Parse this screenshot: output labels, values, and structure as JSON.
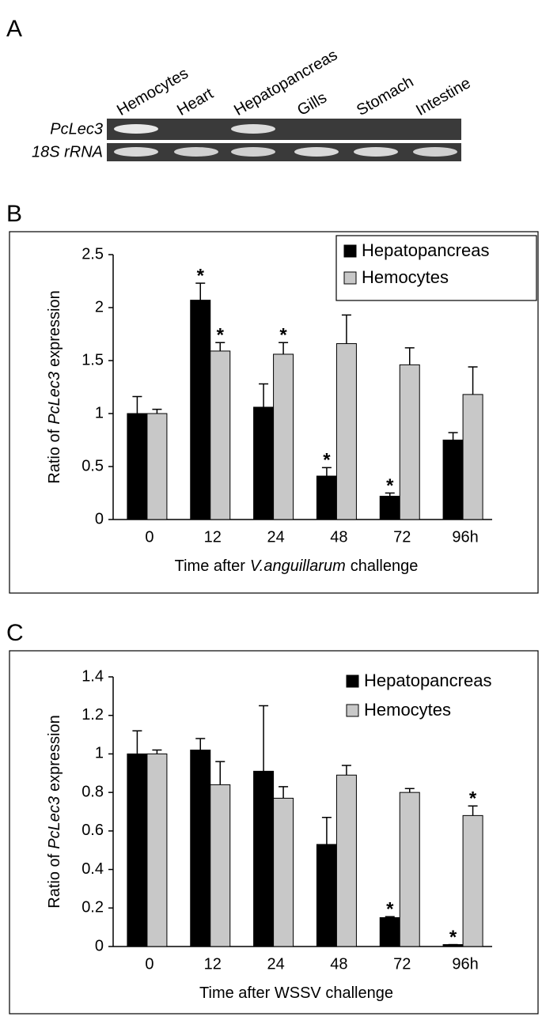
{
  "gel": {
    "panel_label": "A",
    "lanes": [
      "Hemocytes",
      "Heart",
      "Hepatopancreas",
      "Gills",
      "Stomach",
      "Intestine"
    ],
    "rows": [
      "PcLec3",
      "18S rRNA"
    ]
  },
  "chart_data": [
    {
      "panel_label": "B",
      "type": "bar",
      "y_label": [
        "Ratio of",
        "PcLec3",
        "expression"
      ],
      "x_label": [
        "Time after",
        "V.anguillarum",
        "challenge"
      ],
      "categories": [
        "0",
        "12",
        "24",
        "48",
        "72",
        "96h"
      ],
      "ylim": [
        0,
        2.5
      ],
      "yticks": [
        0,
        0.5,
        1,
        1.5,
        2,
        2.5
      ],
      "legend_frame": true,
      "series": [
        {
          "name": "Hepatopancreas",
          "color": "#000000",
          "values": [
            1.0,
            2.07,
            1.06,
            0.41,
            0.22,
            0.75
          ],
          "errors": [
            0.16,
            0.16,
            0.22,
            0.08,
            0.03,
            0.07
          ],
          "significance": [
            null,
            "*",
            null,
            "*",
            "*",
            null
          ]
        },
        {
          "name": "Hemocytes",
          "color": "#c8c8c8",
          "values": [
            1.0,
            1.59,
            1.56,
            1.66,
            1.46,
            1.18
          ],
          "errors": [
            0.04,
            0.08,
            0.11,
            0.27,
            0.16,
            0.26
          ],
          "significance": [
            null,
            "*",
            "*",
            null,
            null,
            null
          ]
        }
      ]
    },
    {
      "panel_label": "C",
      "type": "bar",
      "y_label": [
        "Ratio of",
        "PcLec3",
        "expression"
      ],
      "x_label": [
        "Time after WSSV challenge"
      ],
      "categories": [
        "0",
        "12",
        "24",
        "48",
        "72",
        "96h"
      ],
      "ylim": [
        0,
        1.4
      ],
      "yticks": [
        0,
        0.2,
        0.4,
        0.6,
        0.8,
        1,
        1.2,
        1.4
      ],
      "legend_frame": false,
      "series": [
        {
          "name": "Hepatopancreas",
          "color": "#000000",
          "values": [
            1.0,
            1.02,
            0.91,
            0.53,
            0.15,
            0.01
          ],
          "errors": [
            0.12,
            0.06,
            0.34,
            0.14,
            0.005,
            0
          ],
          "significance": [
            null,
            null,
            null,
            null,
            "*",
            "*"
          ]
        },
        {
          "name": "Hemocytes",
          "color": "#c8c8c8",
          "values": [
            1.0,
            0.84,
            0.77,
            0.89,
            0.8,
            0.68
          ],
          "errors": [
            0.02,
            0.12,
            0.06,
            0.05,
            0.02,
            0.05
          ],
          "significance": [
            null,
            null,
            null,
            null,
            null,
            "*"
          ]
        }
      ]
    }
  ]
}
